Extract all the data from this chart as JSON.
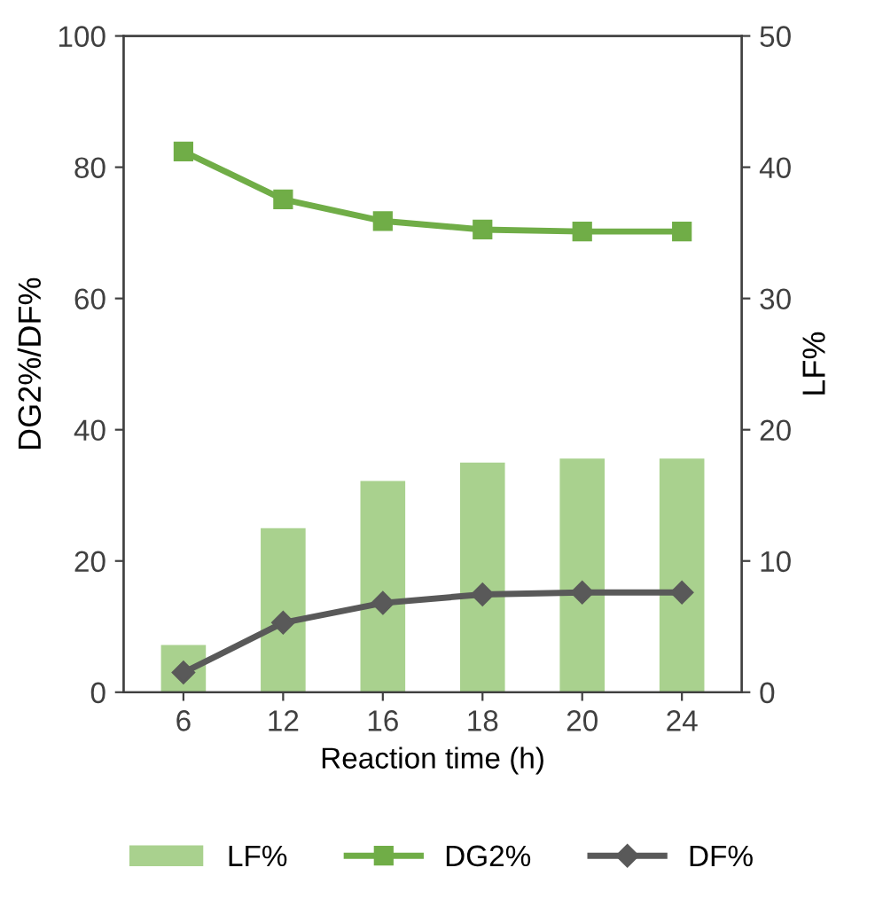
{
  "chart_data": {
    "type": "bar",
    "xlabel": "Reaction time (h)",
    "ylabel": "DG2%/DF%",
    "y2label": "LF%",
    "categories": [
      "6",
      "12",
      "16",
      "18",
      "20",
      "24"
    ],
    "series": [
      {
        "name": "LF%",
        "axis": "y2",
        "color": "#a9d18e",
        "values": [
          3.6,
          12.5,
          16.1,
          17.5,
          17.8,
          17.8
        ]
      },
      {
        "name": "DG2%",
        "type": "line",
        "color": "#70ad47",
        "marker": "square",
        "values": [
          82.4,
          75.1,
          71.8,
          70.5,
          70.2,
          70.2
        ]
      },
      {
        "name": "DF%",
        "type": "line",
        "color": "#595959",
        "marker": "diamond",
        "values": [
          3.0,
          10.6,
          13.6,
          14.9,
          15.2,
          15.2
        ]
      }
    ],
    "ylim": [
      0,
      100
    ],
    "yticks": [
      0,
      20,
      40,
      60,
      80,
      100
    ],
    "y2lim": [
      0,
      50
    ],
    "y2ticks": [
      0,
      10,
      20,
      30,
      40,
      50
    ],
    "grid": false,
    "legend": "bottom"
  }
}
